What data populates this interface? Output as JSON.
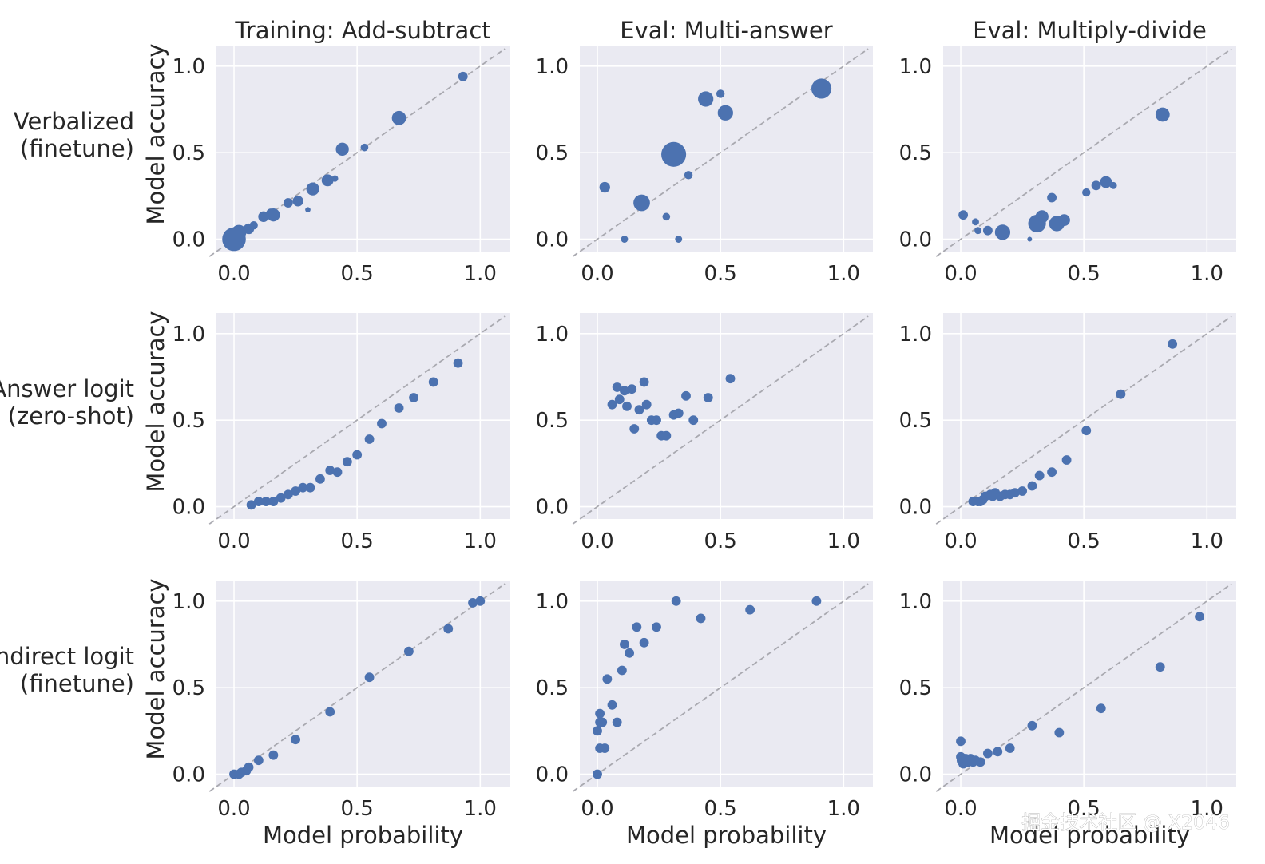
{
  "chart_data": {
    "type": "scatter",
    "layout": "3x3 grid",
    "column_titles": [
      "Training: Add-subtract",
      "Eval: Multi-answer",
      "Eval: Multiply-divide"
    ],
    "row_labels": [
      [
        "Verbalized",
        "(finetune)"
      ],
      [
        "Answer logit",
        "(zero-shot)"
      ],
      [
        "Indirect logit",
        "(finetune)"
      ]
    ],
    "xlabel": "Model probability",
    "ylabel": "Model accuracy",
    "xlim": [
      -0.1,
      1.1
    ],
    "ylim": [
      -0.1,
      1.1
    ],
    "x_ticks": [
      "0.0",
      "0.5",
      "1.0"
    ],
    "y_ticks": [
      "0.0",
      "0.5",
      "1.0"
    ],
    "grid": true,
    "reference_line": "y = x (dashed gray)",
    "point_color": "#4c72b0",
    "panel_background": "#eaeaf2",
    "panels": [
      {
        "row": 0,
        "col": 0,
        "points": [
          [
            0.0,
            0.0,
            4
          ],
          [
            0.01,
            0.02,
            3
          ],
          [
            0.02,
            0.04,
            2.5
          ],
          [
            0.06,
            0.06,
            1.8
          ],
          [
            0.08,
            0.08,
            1.4
          ],
          [
            0.12,
            0.13,
            1.8
          ],
          [
            0.15,
            0.15,
            1.6
          ],
          [
            0.16,
            0.14,
            2.2
          ],
          [
            0.22,
            0.21,
            1.6
          ],
          [
            0.26,
            0.22,
            1.8
          ],
          [
            0.3,
            0.17,
            0.9
          ],
          [
            0.32,
            0.29,
            2.2
          ],
          [
            0.38,
            0.34,
            2
          ],
          [
            0.41,
            0.35,
            1.1
          ],
          [
            0.44,
            0.52,
            2.2
          ],
          [
            0.53,
            0.53,
            1.3
          ],
          [
            0.67,
            0.7,
            2.4
          ],
          [
            0.93,
            0.94,
            1.6
          ]
        ]
      },
      {
        "row": 0,
        "col": 1,
        "points": [
          [
            0.03,
            0.3,
            1.8
          ],
          [
            0.11,
            0.0,
            1.2
          ],
          [
            0.18,
            0.21,
            2.8
          ],
          [
            0.28,
            0.13,
            1.3
          ],
          [
            0.31,
            0.49,
            4.2
          ],
          [
            0.33,
            0.0,
            1.2
          ],
          [
            0.37,
            0.37,
            1.4
          ],
          [
            0.44,
            0.81,
            2.6
          ],
          [
            0.5,
            0.84,
            1.4
          ],
          [
            0.52,
            0.73,
            2.6
          ],
          [
            0.91,
            0.87,
            3.4
          ]
        ]
      },
      {
        "row": 0,
        "col": 2,
        "points": [
          [
            0.01,
            0.14,
            1.6
          ],
          [
            0.06,
            0.1,
            1.2
          ],
          [
            0.07,
            0.05,
            1.2
          ],
          [
            0.11,
            0.05,
            1.6
          ],
          [
            0.17,
            0.04,
            2.6
          ],
          [
            0.28,
            0.0,
            0.8
          ],
          [
            0.31,
            0.09,
            3
          ],
          [
            0.33,
            0.13,
            2.2
          ],
          [
            0.37,
            0.24,
            1.6
          ],
          [
            0.39,
            0.09,
            2.6
          ],
          [
            0.42,
            0.11,
            2
          ],
          [
            0.51,
            0.27,
            1.4
          ],
          [
            0.55,
            0.31,
            1.6
          ],
          [
            0.59,
            0.33,
            2
          ],
          [
            0.62,
            0.31,
            1.2
          ],
          [
            0.82,
            0.72,
            2.4
          ]
        ]
      },
      {
        "row": 1,
        "col": 0,
        "points": [
          [
            0.07,
            0.01,
            1.6
          ],
          [
            0.1,
            0.03,
            1.6
          ],
          [
            0.13,
            0.03,
            1.6
          ],
          [
            0.16,
            0.03,
            1.6
          ],
          [
            0.19,
            0.05,
            1.6
          ],
          [
            0.22,
            0.07,
            1.6
          ],
          [
            0.25,
            0.09,
            1.6
          ],
          [
            0.28,
            0.11,
            1.6
          ],
          [
            0.31,
            0.11,
            1.6
          ],
          [
            0.35,
            0.16,
            1.6
          ],
          [
            0.39,
            0.21,
            1.6
          ],
          [
            0.42,
            0.2,
            1.6
          ],
          [
            0.46,
            0.26,
            1.6
          ],
          [
            0.5,
            0.3,
            1.6
          ],
          [
            0.55,
            0.39,
            1.6
          ],
          [
            0.6,
            0.48,
            1.6
          ],
          [
            0.67,
            0.57,
            1.6
          ],
          [
            0.73,
            0.63,
            1.6
          ],
          [
            0.81,
            0.72,
            1.6
          ],
          [
            0.91,
            0.83,
            1.6
          ]
        ]
      },
      {
        "row": 1,
        "col": 1,
        "points": [
          [
            0.06,
            0.59,
            1.6
          ],
          [
            0.08,
            0.69,
            1.6
          ],
          [
            0.09,
            0.62,
            1.6
          ],
          [
            0.11,
            0.67,
            1.6
          ],
          [
            0.12,
            0.58,
            1.6
          ],
          [
            0.14,
            0.68,
            1.6
          ],
          [
            0.15,
            0.45,
            1.6
          ],
          [
            0.17,
            0.56,
            1.6
          ],
          [
            0.19,
            0.72,
            1.6
          ],
          [
            0.2,
            0.59,
            1.6
          ],
          [
            0.22,
            0.5,
            1.6
          ],
          [
            0.24,
            0.5,
            1.6
          ],
          [
            0.26,
            0.41,
            1.6
          ],
          [
            0.28,
            0.41,
            1.6
          ],
          [
            0.31,
            0.53,
            1.6
          ],
          [
            0.33,
            0.54,
            1.6
          ],
          [
            0.36,
            0.64,
            1.6
          ],
          [
            0.39,
            0.5,
            1.6
          ],
          [
            0.45,
            0.63,
            1.6
          ],
          [
            0.54,
            0.74,
            1.6
          ]
        ]
      },
      {
        "row": 1,
        "col": 2,
        "points": [
          [
            0.05,
            0.03,
            1.6
          ],
          [
            0.07,
            0.03,
            1.6
          ],
          [
            0.08,
            0.03,
            1.6
          ],
          [
            0.09,
            0.04,
            1.6
          ],
          [
            0.1,
            0.06,
            1.6
          ],
          [
            0.12,
            0.07,
            1.6
          ],
          [
            0.13,
            0.06,
            1.6
          ],
          [
            0.14,
            0.08,
            1.6
          ],
          [
            0.16,
            0.06,
            1.6
          ],
          [
            0.18,
            0.07,
            1.6
          ],
          [
            0.2,
            0.07,
            1.6
          ],
          [
            0.22,
            0.08,
            1.6
          ],
          [
            0.25,
            0.09,
            1.6
          ],
          [
            0.29,
            0.12,
            1.6
          ],
          [
            0.32,
            0.18,
            1.6
          ],
          [
            0.37,
            0.2,
            1.6
          ],
          [
            0.43,
            0.27,
            1.6
          ],
          [
            0.51,
            0.44,
            1.6
          ],
          [
            0.65,
            0.65,
            1.6
          ],
          [
            0.86,
            0.94,
            1.6
          ]
        ]
      },
      {
        "row": 2,
        "col": 0,
        "points": [
          [
            0.0,
            0.0,
            1.6
          ],
          [
            0.02,
            0.0,
            1.6
          ],
          [
            0.03,
            0.01,
            1.6
          ],
          [
            0.05,
            0.02,
            1.6
          ],
          [
            0.06,
            0.04,
            1.6
          ],
          [
            0.1,
            0.08,
            1.6
          ],
          [
            0.16,
            0.11,
            1.6
          ],
          [
            0.25,
            0.2,
            1.6
          ],
          [
            0.39,
            0.36,
            1.6
          ],
          [
            0.55,
            0.56,
            1.6
          ],
          [
            0.71,
            0.71,
            1.6
          ],
          [
            0.87,
            0.84,
            1.6
          ],
          [
            0.97,
            0.99,
            1.6
          ],
          [
            1.0,
            1.0,
            1.6
          ]
        ]
      },
      {
        "row": 2,
        "col": 1,
        "points": [
          [
            0.0,
            0.0,
            1.6
          ],
          [
            0.0,
            0.25,
            1.6
          ],
          [
            0.01,
            0.3,
            1.6
          ],
          [
            0.01,
            0.35,
            1.6
          ],
          [
            0.01,
            0.15,
            1.6
          ],
          [
            0.02,
            0.3,
            1.6
          ],
          [
            0.03,
            0.15,
            1.6
          ],
          [
            0.04,
            0.55,
            1.6
          ],
          [
            0.06,
            0.4,
            1.6
          ],
          [
            0.08,
            0.3,
            1.6
          ],
          [
            0.1,
            0.6,
            1.6
          ],
          [
            0.11,
            0.75,
            1.6
          ],
          [
            0.13,
            0.7,
            1.6
          ],
          [
            0.16,
            0.85,
            1.6
          ],
          [
            0.19,
            0.76,
            1.6
          ],
          [
            0.24,
            0.85,
            1.6
          ],
          [
            0.32,
            1.0,
            1.6
          ],
          [
            0.42,
            0.9,
            1.6
          ],
          [
            0.62,
            0.95,
            1.6
          ],
          [
            0.89,
            1.0,
            1.6
          ]
        ]
      },
      {
        "row": 2,
        "col": 2,
        "points": [
          [
            0.0,
            0.19,
            1.6
          ],
          [
            0.0,
            0.1,
            1.6
          ],
          [
            0.01,
            0.08,
            2.2
          ],
          [
            0.01,
            0.06,
            1.6
          ],
          [
            0.02,
            0.09,
            1.6
          ],
          [
            0.03,
            0.07,
            1.6
          ],
          [
            0.04,
            0.09,
            1.6
          ],
          [
            0.05,
            0.07,
            1.6
          ],
          [
            0.06,
            0.08,
            1.6
          ],
          [
            0.08,
            0.07,
            1.6
          ],
          [
            0.11,
            0.12,
            1.6
          ],
          [
            0.15,
            0.13,
            1.6
          ],
          [
            0.2,
            0.15,
            1.6
          ],
          [
            0.29,
            0.28,
            1.6
          ],
          [
            0.4,
            0.24,
            1.6
          ],
          [
            0.57,
            0.38,
            1.6
          ],
          [
            0.81,
            0.62,
            1.6
          ],
          [
            0.97,
            0.91,
            1.6
          ]
        ]
      }
    ]
  },
  "watermark": "掘金技术社区 @ X2046"
}
